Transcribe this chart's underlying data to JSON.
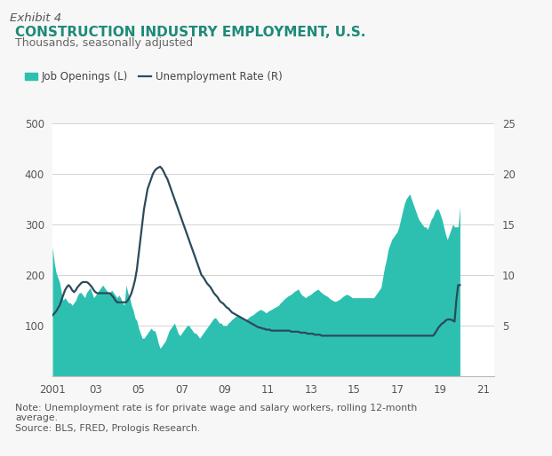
{
  "title": "CONSTRUCTION INDUSTRY EMPLOYMENT, U.S.",
  "subtitle": "Thousands, seasonally adjusted",
  "exhibit_label": "Exhibit 4",
  "note": "Note: Unemployment rate is for private wage and salary workers, rolling 12-month\naverage.\nSource: BLS, FRED, Prologis Research.",
  "legend_job_openings": "Job Openings (L)",
  "legend_unemployment": "Unemployment Rate (R)",
  "fill_color": "#2DC0B0",
  "line_color": "#2C4A5A",
  "title_color": "#1E8A78",
  "background_color": "#f7f7f7",
  "plot_bg_color": "#ffffff",
  "header_bg_color": "#e2e2e2",
  "ylim_left": [
    0,
    500
  ],
  "ylim_right": [
    0,
    25
  ],
  "yticks_left": [
    100,
    200,
    300,
    400,
    500
  ],
  "yticks_right": [
    5,
    10,
    15,
    20,
    25
  ],
  "xtick_labels": [
    "2001",
    "03",
    "05",
    "07",
    "09",
    "11",
    "13",
    "15",
    "17",
    "19",
    "21"
  ],
  "xtick_positions": [
    2001,
    2003,
    2005,
    2007,
    2009,
    2011,
    2013,
    2015,
    2017,
    2019,
    2021
  ],
  "xlim": [
    2001,
    2021.5
  ],
  "job_openings": [
    255,
    225,
    205,
    195,
    185,
    165,
    150,
    155,
    150,
    145,
    145,
    140,
    145,
    150,
    160,
    165,
    165,
    160,
    155,
    165,
    170,
    175,
    165,
    155,
    160,
    165,
    170,
    175,
    180,
    175,
    170,
    165,
    165,
    170,
    165,
    160,
    155,
    160,
    155,
    145,
    140,
    180,
    165,
    155,
    140,
    130,
    115,
    110,
    95,
    85,
    75,
    75,
    80,
    85,
    90,
    95,
    90,
    90,
    80,
    65,
    55,
    60,
    65,
    70,
    80,
    90,
    95,
    100,
    105,
    95,
    85,
    80,
    85,
    90,
    95,
    100,
    100,
    95,
    90,
    85,
    85,
    80,
    75,
    80,
    85,
    90,
    95,
    100,
    105,
    110,
    115,
    115,
    110,
    105,
    105,
    100,
    100,
    100,
    105,
    108,
    112,
    115,
    118,
    120,
    120,
    118,
    115,
    110,
    112,
    115,
    118,
    120,
    122,
    125,
    128,
    130,
    132,
    130,
    128,
    125,
    128,
    130,
    132,
    134,
    136,
    138,
    140,
    145,
    148,
    152,
    155,
    158,
    160,
    162,
    165,
    168,
    170,
    172,
    165,
    160,
    158,
    155,
    158,
    160,
    162,
    165,
    168,
    170,
    172,
    168,
    165,
    162,
    160,
    158,
    155,
    152,
    150,
    148,
    148,
    150,
    152,
    155,
    158,
    160,
    162,
    160,
    158,
    155,
    155,
    155,
    155,
    155,
    155,
    155,
    155,
    155,
    155,
    155,
    155,
    155,
    160,
    165,
    170,
    175,
    195,
    215,
    230,
    250,
    260,
    270,
    275,
    280,
    285,
    295,
    310,
    325,
    340,
    350,
    355,
    360,
    350,
    340,
    330,
    320,
    310,
    305,
    300,
    295,
    295,
    290,
    300,
    310,
    315,
    325,
    330,
    330,
    320,
    310,
    295,
    280,
    270,
    280,
    290,
    300,
    295,
    295,
    295,
    335
  ],
  "unemployment_rate": [
    6.0,
    6.2,
    6.4,
    6.7,
    7.0,
    7.5,
    8.0,
    8.5,
    8.8,
    9.0,
    8.8,
    8.5,
    8.3,
    8.5,
    8.8,
    9.0,
    9.2,
    9.3,
    9.3,
    9.3,
    9.2,
    9.0,
    8.8,
    8.5,
    8.3,
    8.2,
    8.2,
    8.2,
    8.2,
    8.2,
    8.2,
    8.2,
    8.2,
    8.0,
    7.8,
    7.5,
    7.3,
    7.3,
    7.3,
    7.3,
    7.3,
    7.3,
    7.5,
    7.8,
    8.2,
    8.8,
    9.5,
    10.5,
    12.0,
    13.5,
    15.0,
    16.5,
    17.5,
    18.5,
    19.0,
    19.5,
    20.0,
    20.3,
    20.5,
    20.6,
    20.7,
    20.5,
    20.2,
    19.8,
    19.5,
    19.0,
    18.5,
    18.0,
    17.5,
    17.0,
    16.5,
    16.0,
    15.5,
    15.0,
    14.5,
    14.0,
    13.5,
    13.0,
    12.5,
    12.0,
    11.5,
    11.0,
    10.5,
    10.0,
    9.8,
    9.5,
    9.2,
    9.0,
    8.8,
    8.5,
    8.2,
    8.0,
    7.8,
    7.5,
    7.3,
    7.2,
    7.0,
    6.8,
    6.7,
    6.5,
    6.3,
    6.2,
    6.1,
    6.0,
    5.9,
    5.8,
    5.7,
    5.6,
    5.5,
    5.4,
    5.3,
    5.2,
    5.1,
    5.0,
    4.9,
    4.8,
    4.8,
    4.7,
    4.7,
    4.6,
    4.6,
    4.6,
    4.5,
    4.5,
    4.5,
    4.5,
    4.5,
    4.5,
    4.5,
    4.5,
    4.5,
    4.5,
    4.5,
    4.4,
    4.4,
    4.4,
    4.4,
    4.4,
    4.3,
    4.3,
    4.3,
    4.3,
    4.2,
    4.2,
    4.2,
    4.2,
    4.1,
    4.1,
    4.1,
    4.1,
    4.0,
    4.0,
    4.0,
    4.0,
    4.0,
    4.0,
    4.0,
    4.0,
    4.0,
    4.0,
    4.0,
    4.0,
    4.0,
    4.0,
    4.0,
    4.0,
    4.0,
    4.0,
    4.0,
    4.0,
    4.0,
    4.0,
    4.0,
    4.0,
    4.0,
    4.0,
    4.0,
    4.0,
    4.0,
    4.0,
    4.0,
    4.0,
    4.0,
    4.0,
    4.0,
    4.0,
    4.0,
    4.0,
    4.0,
    4.0,
    4.0,
    4.0,
    4.0,
    4.0,
    4.0,
    4.0,
    4.0,
    4.0,
    4.0,
    4.0,
    4.0,
    4.0,
    4.0,
    4.0,
    4.0,
    4.0,
    4.0,
    4.0,
    4.0,
    4.0,
    4.0,
    4.0,
    4.0,
    4.2,
    4.5,
    4.8,
    5.0,
    5.2,
    5.3,
    5.5,
    5.6,
    5.6,
    5.6,
    5.5,
    5.4,
    7.5,
    9.0,
    9.0
  ]
}
